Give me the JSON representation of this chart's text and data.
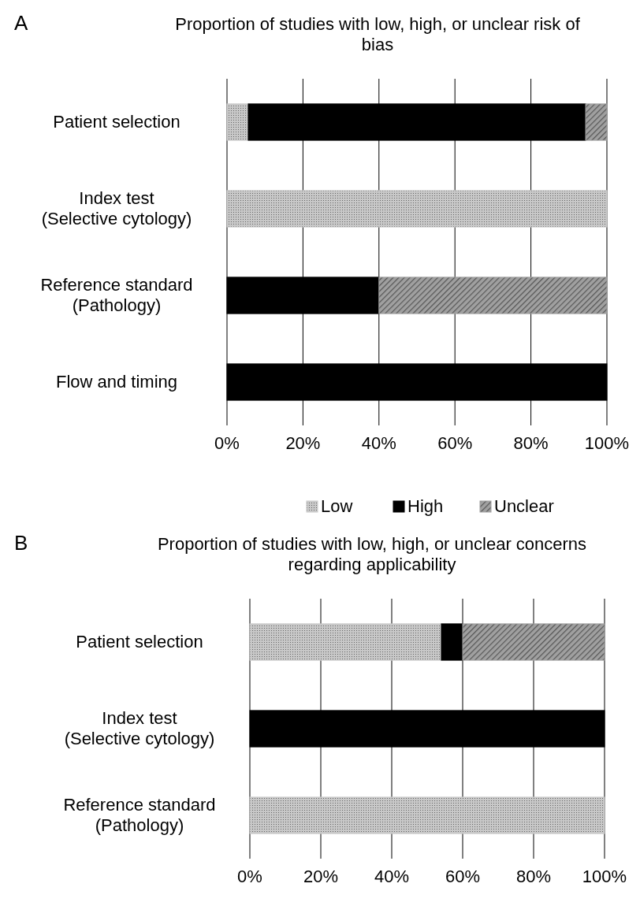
{
  "chart_data": [
    {
      "type": "bar",
      "orientation": "horizontal",
      "stacked": true,
      "title": "Proportion of studies with low, high, or unclear risk of bias",
      "annotations": [
        "A"
      ],
      "categories": [
        "Patient selection",
        "Index test (Selective cytology)",
        "Reference standard (Pathology)",
        "Flow and timing"
      ],
      "series": [
        {
          "name": "Low",
          "color": "#c8c8c8",
          "values": [
            5.6,
            100,
            0,
            0
          ]
        },
        {
          "name": "High",
          "color": "#000000",
          "values": [
            88.8,
            0,
            40,
            100
          ]
        },
        {
          "name": "Unclear",
          "color": "#a0a0a0",
          "values": [
            5.6,
            0,
            60,
            0
          ]
        }
      ],
      "xlim": [
        0,
        100
      ],
      "xticks": [
        {
          "value": 0,
          "label": "0%"
        },
        {
          "value": 20,
          "label": "20%"
        },
        {
          "value": 40,
          "label": "40%"
        },
        {
          "value": 60,
          "label": "60%"
        },
        {
          "value": 80,
          "label": "80%"
        },
        {
          "value": 100,
          "label": "100%"
        }
      ],
      "grid": "x",
      "legend": "bottom"
    },
    {
      "type": "bar",
      "orientation": "horizontal",
      "stacked": true,
      "title": "Proportion of studies with low, high, or unclear concerns regarding applicability",
      "annotations": [
        "B"
      ],
      "categories": [
        "Patient selection",
        "Index test (Selective cytology)",
        "Reference standard (Pathology)"
      ],
      "series": [
        {
          "color": "#c8c8c8",
          "values": [
            54,
            0,
            100
          ]
        },
        {
          "color": "#000000",
          "values": [
            6,
            100,
            0
          ]
        },
        {
          "color": "#a0a0a0",
          "values": [
            40,
            0,
            0
          ]
        }
      ],
      "xlim": [
        0,
        100
      ],
      "xticks": [
        {
          "value": 0,
          "label": "0%"
        },
        {
          "value": 20,
          "label": "20%"
        },
        {
          "value": 40,
          "label": "40%"
        },
        {
          "value": 60,
          "label": "60%"
        },
        {
          "value": 80,
          "label": "80%"
        },
        {
          "value": 100,
          "label": "100%"
        }
      ],
      "grid": "x",
      "legend": false
    }
  ]
}
